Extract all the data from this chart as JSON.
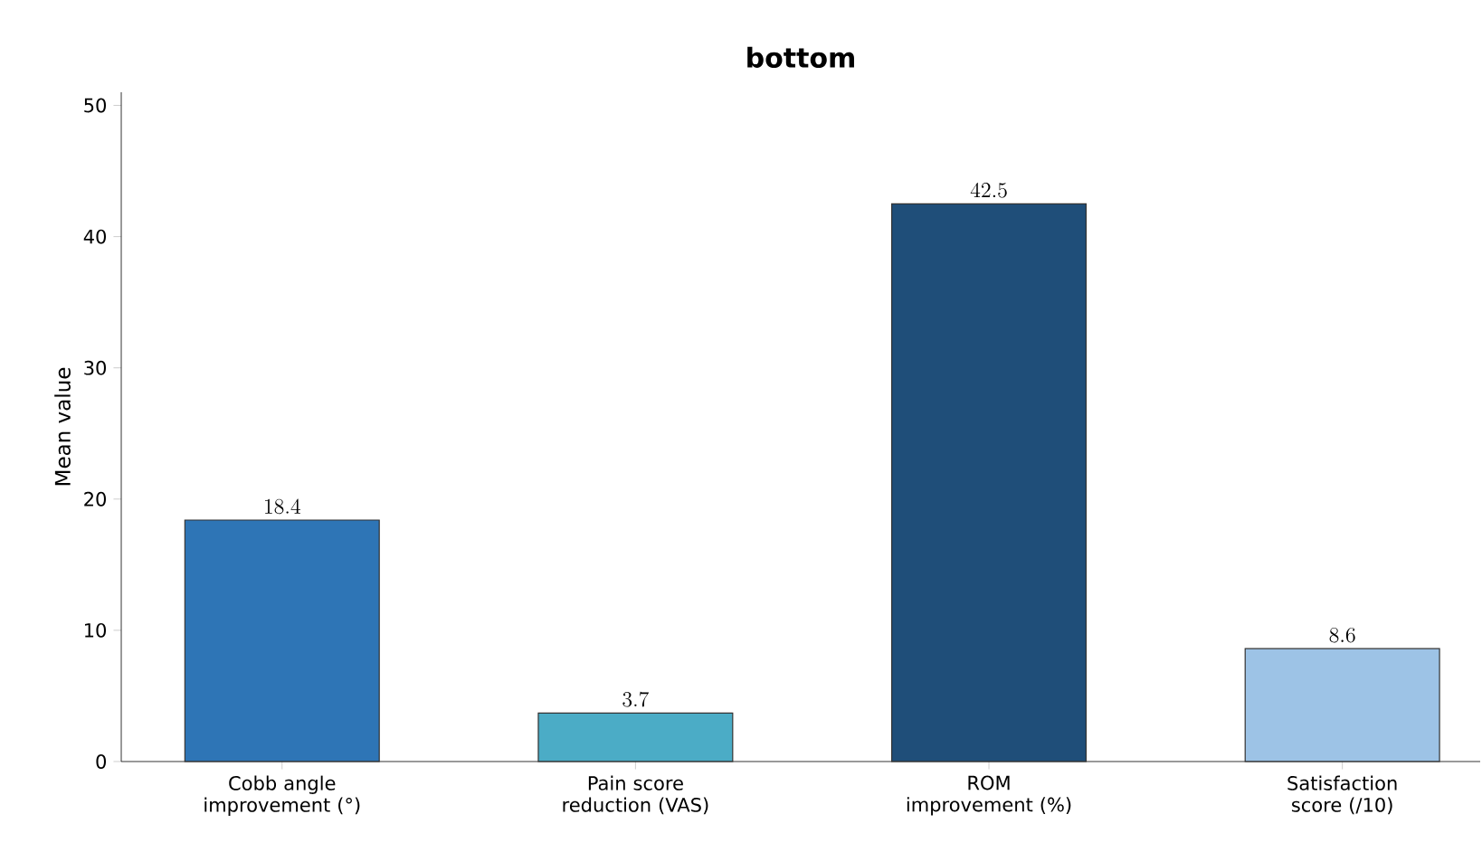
{
  "chart_data": {
    "type": "bar",
    "title": "bottom",
    "ylabel": "Mean value",
    "categories": [
      "Cobb angle improvement (°)",
      "Pain score reduction (VAS)",
      "ROM improvement (%)",
      "Satisfaction score (/10)"
    ],
    "values": [
      18.4,
      3.7,
      42.5,
      8.6
    ],
    "colors": [
      "#2e75b6",
      "#4bacc6",
      "#1f4e79",
      "#9dc3e6"
    ],
    "ylim": [
      0,
      51
    ],
    "yticks": [
      0,
      10,
      20,
      30,
      40,
      50
    ],
    "data_labels": true
  }
}
